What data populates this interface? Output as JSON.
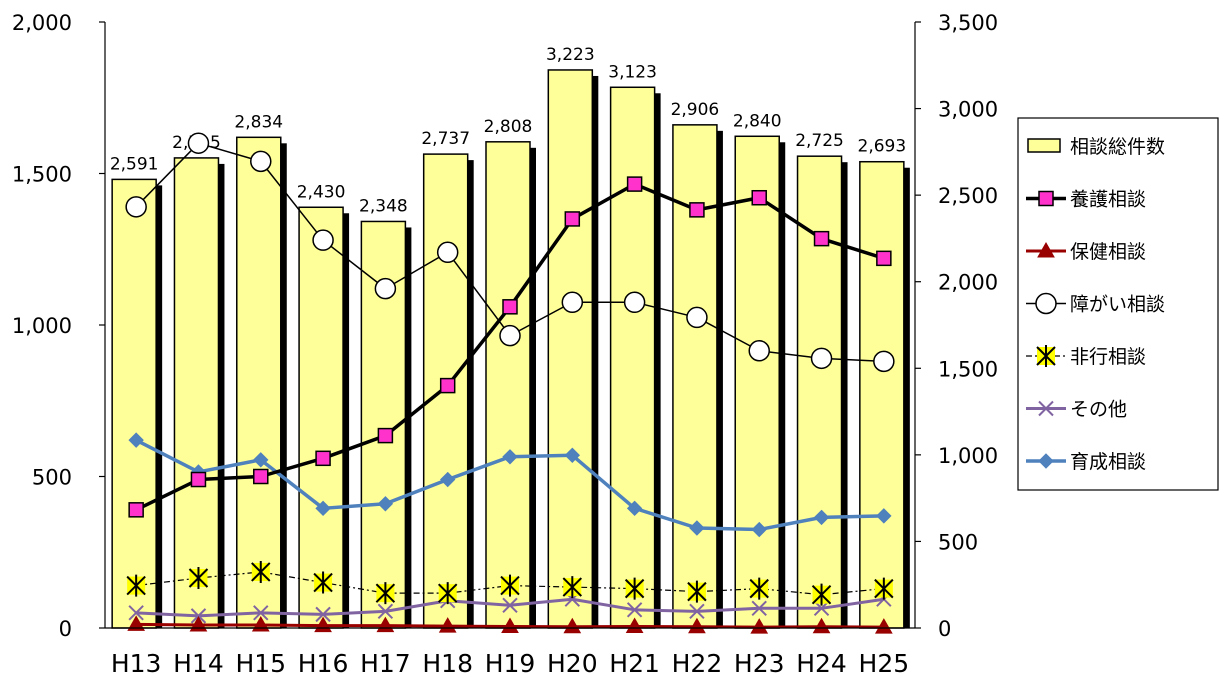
{
  "chart_data": {
    "type": "bar",
    "categories": [
      "H13",
      "H14",
      "H15",
      "H16",
      "H17",
      "H18",
      "H19",
      "H20",
      "H21",
      "H22",
      "H23",
      "H24",
      "H25"
    ],
    "left_axis": {
      "ylim": [
        0,
        2000
      ],
      "ticks": [
        0,
        500,
        1000,
        1500,
        2000
      ],
      "tick_labels": [
        "0",
        "500",
        "1,000",
        "1,500",
        "2,000"
      ]
    },
    "right_axis": {
      "ylim": [
        0,
        3500
      ],
      "ticks": [
        0,
        500,
        1000,
        1500,
        2000,
        2500,
        3000,
        3500
      ],
      "tick_labels": [
        "0",
        "500",
        "1,000",
        "1,500",
        "2,000",
        "2,500",
        "3,000",
        "3,500"
      ]
    },
    "series": [
      {
        "name": "相談総件数",
        "kind": "bar",
        "axis": "right",
        "color": "#ffff99",
        "values": [
          2591,
          2715,
          2834,
          2430,
          2348,
          2737,
          2808,
          3223,
          3123,
          2906,
          2840,
          2725,
          2693
        ],
        "labels": [
          "2,591",
          "2,715",
          "2,834",
          "2,430",
          "2,348",
          "2,737",
          "2,808",
          "3,223",
          "3,123",
          "2,906",
          "2,840",
          "2,725",
          "2,693"
        ]
      },
      {
        "name": "養護相談",
        "kind": "line",
        "axis": "left",
        "color": "#000000",
        "marker": "square",
        "marker_color": "#ff33cc",
        "values": [
          390,
          490,
          500,
          560,
          635,
          800,
          1060,
          1350,
          1465,
          1380,
          1420,
          1285,
          1220
        ]
      },
      {
        "name": "保健相談",
        "kind": "line",
        "axis": "left",
        "color": "#990000",
        "marker": "triangle",
        "marker_color": "#990000",
        "values": [
          12,
          10,
          10,
          8,
          8,
          6,
          5,
          4,
          5,
          4,
          3,
          4,
          3
        ]
      },
      {
        "name": "障がい相談",
        "kind": "line",
        "axis": "left",
        "color": "#000000",
        "marker": "circle",
        "marker_color": "#ffffff",
        "values": [
          1390,
          1600,
          1540,
          1280,
          1120,
          1240,
          965,
          1075,
          1075,
          1025,
          915,
          890,
          880
        ]
      },
      {
        "name": "非行相談",
        "kind": "line",
        "axis": "left",
        "color": "#000000",
        "marker": "star",
        "marker_color": "#ffff00",
        "values": [
          140,
          165,
          185,
          150,
          115,
          115,
          140,
          135,
          130,
          120,
          130,
          110,
          130
        ]
      },
      {
        "name": "その他",
        "kind": "line",
        "axis": "left",
        "color": "#8064a2",
        "marker": "x",
        "marker_color": "#8064a2",
        "values": [
          50,
          40,
          50,
          45,
          55,
          90,
          75,
          95,
          60,
          55,
          65,
          65,
          95
        ]
      },
      {
        "name": "育成相談",
        "kind": "line",
        "axis": "left",
        "color": "#4f81bd",
        "marker": "diamond",
        "marker_color": "#4f81bd",
        "values": [
          620,
          515,
          555,
          395,
          410,
          490,
          565,
          570,
          395,
          330,
          325,
          365,
          370
        ]
      }
    ],
    "legend": {
      "placement": "right",
      "order": [
        "相談総件数",
        "養護相談",
        "保健相談",
        "障がい相談",
        "非行相談",
        "その他",
        "育成相談"
      ]
    },
    "grid": false
  }
}
